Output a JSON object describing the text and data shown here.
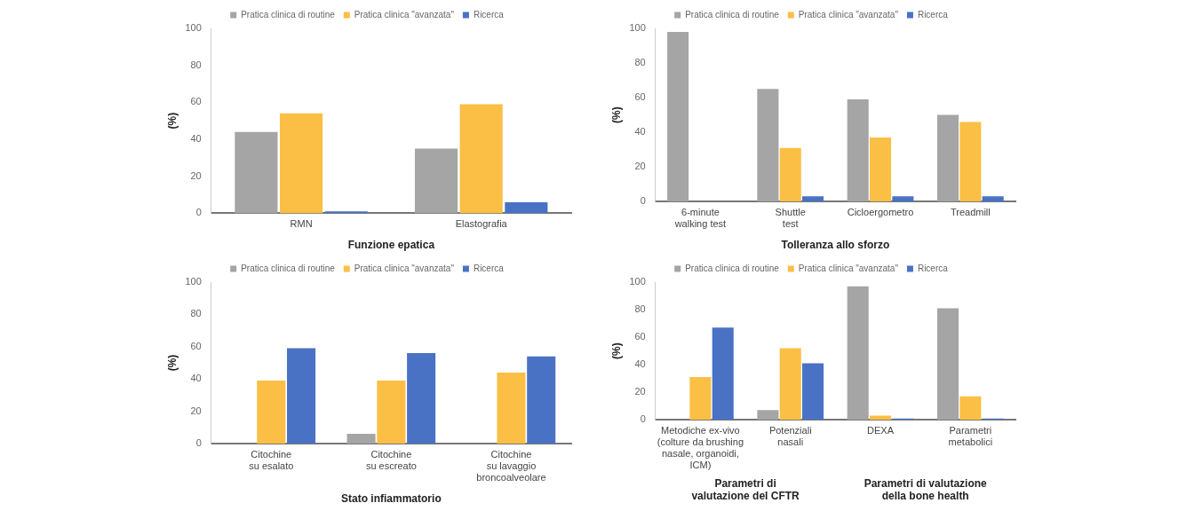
{
  "chart_data": [
    {
      "type": "bar",
      "categories": [
        "RMN",
        "Elastografia"
      ],
      "xlabel": "Funzione epatica",
      "ylabel": "(%)",
      "ylim": [
        0,
        100
      ],
      "yticks": [
        0,
        20,
        40,
        60,
        80,
        100
      ],
      "grid": false,
      "legend": "top",
      "series": [
        {
          "name": "Pratica clinica di routine",
          "color": "#a5a5a5",
          "values": [
            44,
            35
          ]
        },
        {
          "name": "Pratica clinica \"avanzata\"",
          "color": "#fbbf45",
          "values": [
            54,
            59
          ]
        },
        {
          "name": "Ricerca",
          "color": "#4a72c4",
          "values": [
            1,
            6
          ]
        }
      ]
    },
    {
      "type": "bar",
      "categories": [
        "6-minute\nwalking test",
        "Shuttle\ntest",
        "Cicloergometro",
        "Treadmill"
      ],
      "xlabel": "Tolleranza allo sforzo",
      "ylabel": "(%)",
      "ylim": [
        0,
        100
      ],
      "yticks": [
        0,
        20,
        40,
        60,
        80,
        100
      ],
      "grid": false,
      "legend": "top",
      "series": [
        {
          "name": "Pratica clinica di routine",
          "color": "#a5a5a5",
          "values": [
            98,
            65,
            59,
            50
          ]
        },
        {
          "name": "Pratica clinica \"avanzata\"",
          "color": "#fbbf45",
          "values": [
            0,
            31,
            37,
            46
          ]
        },
        {
          "name": "Ricerca",
          "color": "#4a72c4",
          "values": [
            0,
            3,
            3,
            3
          ]
        }
      ]
    },
    {
      "type": "bar",
      "categories": [
        "Citochine\nsu esalato",
        "Citochine\nsu escreato",
        "Citochine\nsu lavaggio\nbroncoalveolare"
      ],
      "xlabel": "Stato infiammatorio",
      "ylabel": "(%)",
      "ylim": [
        0,
        100
      ],
      "yticks": [
        0,
        20,
        40,
        60,
        80,
        100
      ],
      "grid": false,
      "legend": "top",
      "series": [
        {
          "name": "Pratica clinica di routine",
          "color": "#a5a5a5",
          "values": [
            null,
            6,
            null
          ]
        },
        {
          "name": "Pratica clinica \"avanzata\"",
          "color": "#fbbf45",
          "values": [
            39,
            39,
            44
          ]
        },
        {
          "name": "Ricerca",
          "color": "#4a72c4",
          "values": [
            59,
            56,
            54
          ]
        }
      ]
    },
    {
      "type": "bar",
      "categories": [
        "Metodiche ex-vivo\n(colture da brushing\nnasale, organoidi,\nICM)",
        "Potenziali\nnasali",
        "DEXA",
        "Parametri\nmetabolici"
      ],
      "ylabel": "(%)",
      "ylim": [
        0,
        100
      ],
      "yticks": [
        0,
        20,
        40,
        60,
        80,
        100
      ],
      "grid": false,
      "legend": "top",
      "annotations": [
        "Parametri di\nvalutazione del CFTR",
        "Parametri di valutazione\ndella bone health"
      ],
      "series": [
        {
          "name": "Pratica clinica di routine",
          "color": "#a5a5a5",
          "values": [
            null,
            7,
            97,
            81
          ]
        },
        {
          "name": "Pratica clinica \"avanzata\"",
          "color": "#fbbf45",
          "values": [
            31,
            52,
            3,
            17
          ]
        },
        {
          "name": "Ricerca",
          "color": "#4a72c4",
          "values": [
            67,
            41,
            1,
            1
          ]
        }
      ]
    }
  ]
}
